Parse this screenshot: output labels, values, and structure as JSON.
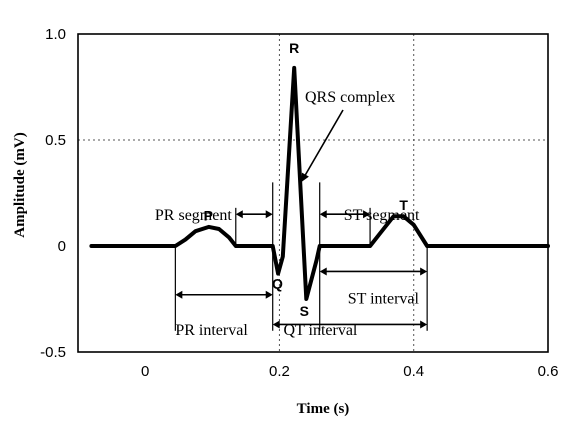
{
  "chart_data": {
    "type": "line",
    "title": "",
    "xlabel": "Time (s)",
    "ylabel": "Amplitude (mV)",
    "xlim": [
      -0.1,
      0.6
    ],
    "ylim": [
      -0.5,
      1.0
    ],
    "xticks": [
      0,
      0.2,
      0.4,
      0.6
    ],
    "xtick_labels": [
      "0",
      "0.2",
      "0.4",
      "0.6"
    ],
    "yticks": [
      -0.5,
      0,
      0.5,
      1.0
    ],
    "ytick_labels": [
      "-0.5",
      "0",
      "0.5",
      "1.0"
    ],
    "grid": true,
    "series": [
      {
        "points": [
          [
            -0.08,
            0
          ],
          [
            0.045,
            0
          ],
          [
            0.06,
            0.03
          ],
          [
            0.075,
            0.07
          ],
          [
            0.095,
            0.09
          ],
          [
            0.11,
            0.08
          ],
          [
            0.125,
            0.04
          ],
          [
            0.135,
            0
          ],
          [
            0.19,
            0
          ],
          [
            0.198,
            -0.13
          ],
          [
            0.205,
            -0.05
          ],
          [
            0.222,
            0.84
          ],
          [
            0.24,
            -0.25
          ],
          [
            0.255,
            -0.07
          ],
          [
            0.26,
            0
          ],
          [
            0.335,
            0
          ],
          [
            0.35,
            0.06
          ],
          [
            0.37,
            0.14
          ],
          [
            0.385,
            0.14
          ],
          [
            0.4,
            0.1
          ],
          [
            0.42,
            0
          ],
          [
            0.6,
            0
          ]
        ]
      }
    ],
    "wave_labels": [
      {
        "text": "P",
        "x": 0.094,
        "y": 0.12
      },
      {
        "text": "R",
        "x": 0.222,
        "y": 0.91
      },
      {
        "text": "Q",
        "x": 0.197,
        "y": -0.2
      },
      {
        "text": "S",
        "x": 0.237,
        "y": -0.33
      },
      {
        "text": "T",
        "x": 0.385,
        "y": 0.17
      }
    ],
    "interval_annotations": [
      {
        "label": "PR segment",
        "x_start": 0.135,
        "x_end": 0.19,
        "y": 0.15
      },
      {
        "label": "ST segment",
        "x_start": 0.26,
        "x_end": 0.335,
        "y": 0.15
      },
      {
        "label": "PR interval",
        "x_start": 0.045,
        "x_end": 0.19,
        "y": -0.23
      },
      {
        "label": "ST interval",
        "x_start": 0.26,
        "x_end": 0.42,
        "y": -0.12
      },
      {
        "label": "QT interval",
        "x_start": 0.19,
        "x_end": 0.42,
        "y": -0.37
      }
    ],
    "annotations": [
      {
        "text": "QRS complex",
        "points_to_x": 0.232,
        "points_to_y": 0.3
      }
    ]
  }
}
